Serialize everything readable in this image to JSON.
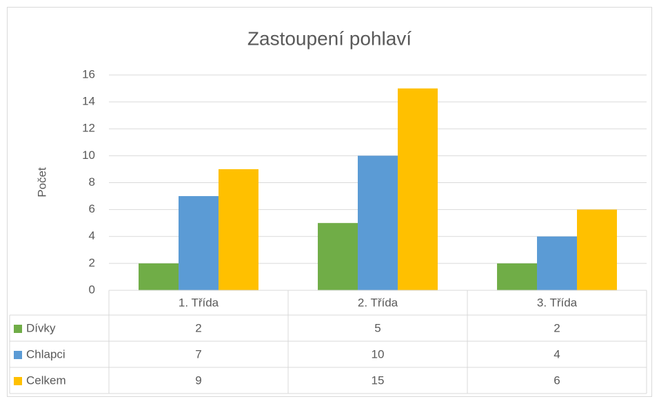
{
  "chart_data": {
    "type": "bar",
    "title": "Zastoupení pohlaví",
    "y_label": "Počet",
    "categories": [
      "1. Třída",
      "2. Třída",
      "3. Třída"
    ],
    "series": [
      {
        "name": "Dívky",
        "color": "#70ad47",
        "values": [
          2,
          5,
          2
        ]
      },
      {
        "name": "Chlapci",
        "color": "#5b9bd5",
        "values": [
          7,
          10,
          4
        ]
      },
      {
        "name": "Celkem",
        "color": "#ffc000",
        "values": [
          9,
          15,
          6
        ]
      }
    ],
    "ylim": [
      0,
      16
    ],
    "yticks": [
      0,
      2,
      4,
      6,
      8,
      10,
      12,
      14,
      16
    ],
    "grid": true,
    "data_table": true
  }
}
